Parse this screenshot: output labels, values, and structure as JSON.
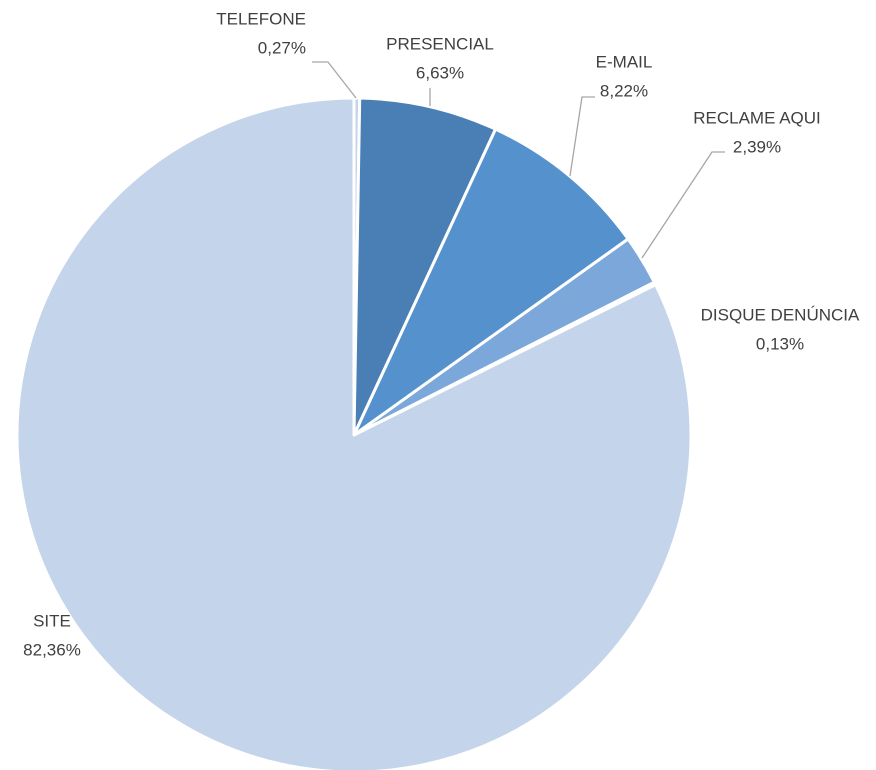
{
  "chart_data": {
    "type": "pie",
    "categories": [
      "TELEFONE",
      "PRESENCIAL",
      "E-MAIL",
      "RECLAME AQUI",
      "DISQUE DENÚNCIA",
      "SITE"
    ],
    "values": [
      0.27,
      6.63,
      8.22,
      2.39,
      0.13,
      82.36
    ],
    "value_labels": [
      "0,27%",
      "6,63%",
      "8,22%",
      "2,39%",
      "0,13%",
      "82,36%"
    ],
    "colors": [
      "#c4d4ea",
      "#4a7fb5",
      "#5592cd",
      "#7ba7da",
      "#c4d4ea",
      "#c4d4ea"
    ]
  }
}
